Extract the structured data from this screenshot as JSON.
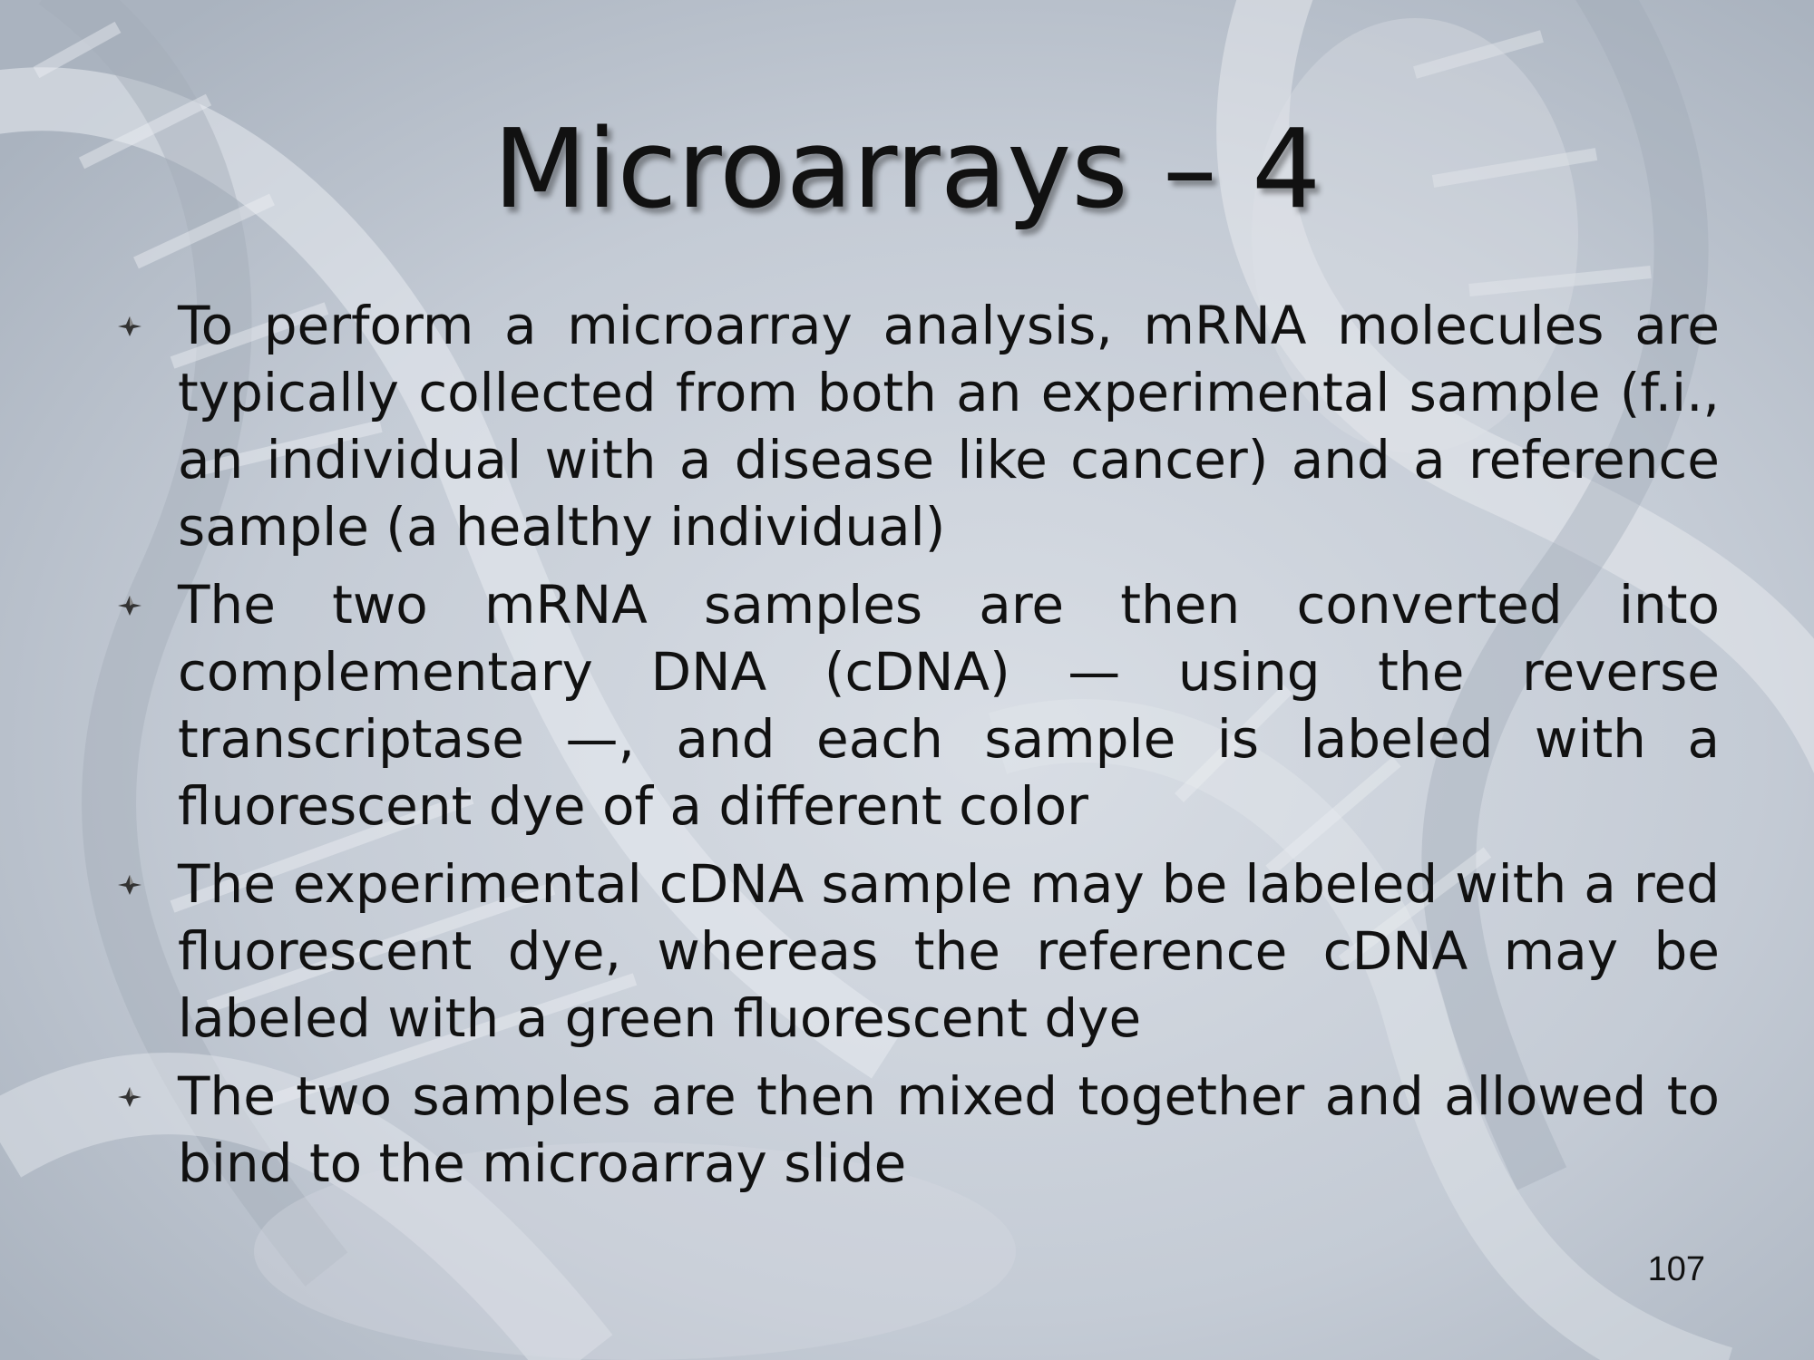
{
  "slide": {
    "title": "Microarrays – 4",
    "bullets": [
      "To perform a microarray analysis, mRNA molecules are typically collected from both an experimental sample (f.i., an individual with a disease like cancer) and a reference sample (a healthy individual)",
      "The two mRNA samples are then converted into complementary DNA (cDNA) — using the reverse transcriptase —, and each sample is labeled with a fluorescent dye of a different color",
      "The experimental cDNA sample may be labeled with a red fluorescent dye, whereas the reference cDNA may be labeled with a green fluorescent dye",
      "The two samples are then mixed together and allowed to bind to the microarray slide"
    ],
    "page_number": "107"
  },
  "icons": {
    "bullet": "four-point-star-bullet-icon",
    "background": "dna-helix-watermark"
  },
  "colors": {
    "background": "#c3cad4",
    "text": "#111111"
  }
}
